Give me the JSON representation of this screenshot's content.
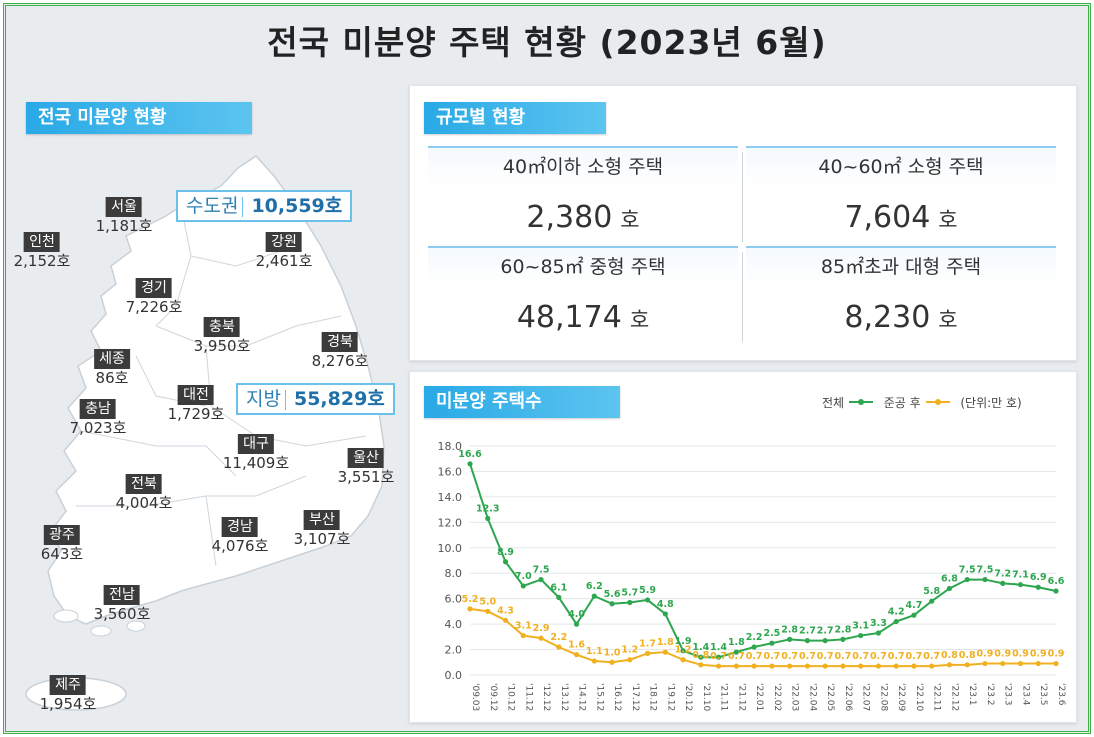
{
  "title": "전국 미분양 주택 현황 (2023년 6월)",
  "map": {
    "tag": "전국 미분양 현황",
    "capital": {
      "label": "수도권",
      "value": "10,559호"
    },
    "local": {
      "label": "지방",
      "value": "55,829호"
    },
    "regions": [
      {
        "id": "seoul",
        "name": "서울",
        "value": "1,181호"
      },
      {
        "id": "incheon",
        "name": "인천",
        "value": "2,152호"
      },
      {
        "id": "gangwon",
        "name": "강원",
        "value": "2,461호"
      },
      {
        "id": "gyeonggi",
        "name": "경기",
        "value": "7,226호"
      },
      {
        "id": "chungbuk",
        "name": "충북",
        "value": "3,950호"
      },
      {
        "id": "gyeongbuk",
        "name": "경북",
        "value": "8,276호"
      },
      {
        "id": "sejong",
        "name": "세종",
        "value": "86호"
      },
      {
        "id": "chungnam",
        "name": "충남",
        "value": "7,023호"
      },
      {
        "id": "daejeon",
        "name": "대전",
        "value": "1,729호"
      },
      {
        "id": "daegu",
        "name": "대구",
        "value": "11,409호"
      },
      {
        "id": "ulsan",
        "name": "울산",
        "value": "3,551호"
      },
      {
        "id": "jeonbuk",
        "name": "전북",
        "value": "4,004호"
      },
      {
        "id": "gyeongnam",
        "name": "경남",
        "value": "4,076호"
      },
      {
        "id": "busan",
        "name": "부산",
        "value": "3,107호"
      },
      {
        "id": "gwangju",
        "name": "광주",
        "value": "643호"
      },
      {
        "id": "jeonnam",
        "name": "전남",
        "value": "3,560호"
      },
      {
        "id": "jeju",
        "name": "제주",
        "value": "1,954호"
      }
    ]
  },
  "size": {
    "tag": "규모별 현황",
    "cells": [
      {
        "label": "40㎡이하 소형 주택",
        "value": "2,380",
        "unit": "호"
      },
      {
        "label": "40~60㎡ 소형 주택",
        "value": "7,604",
        "unit": "호"
      },
      {
        "label": "60~85㎡ 중형 주택",
        "value": "48,174",
        "unit": "호"
      },
      {
        "label": "85㎡초과 대형 주택",
        "value": "8,230",
        "unit": "호"
      }
    ]
  },
  "trend": {
    "tag": "미분양 주택수",
    "legend_total": "전체",
    "legend_completed": "준공 후",
    "legend_unit": "(단위:만 호)"
  },
  "colors": {
    "total": "#2ea64f",
    "completed": "#f0b020",
    "accent": "#29a9e6"
  },
  "chart_data": {
    "type": "line",
    "categories": [
      "'09.03",
      "'09.12",
      "'10.12",
      "'11.12",
      "'12.12",
      "'13.12",
      "'14.12",
      "'15.12",
      "'16.12",
      "'17.12",
      "'18.12",
      "'19.12",
      "'20.12",
      "'21.10",
      "'21.11",
      "'21.12",
      "'22.01",
      "'22.02",
      "'22.03",
      "'22.04",
      "'22.05",
      "'22.06",
      "'22.07",
      "'22.08",
      "'22.09",
      "'22.10",
      "'22.11",
      "'22.12",
      "'23.1",
      "'23.2",
      "'23.3",
      "'23.4",
      "'23.5",
      "'23.6"
    ],
    "ylim": [
      0,
      18
    ],
    "yticks": [
      "0.0",
      "2.0",
      "4.0",
      "6.0",
      "8.0",
      "10.0",
      "12.0",
      "14.0",
      "16.0",
      "18.0"
    ],
    "series": [
      {
        "name": "전체",
        "values": [
          16.6,
          12.3,
          8.9,
          7.0,
          7.5,
          6.1,
          4.0,
          6.2,
          5.6,
          5.7,
          5.9,
          4.8,
          1.9,
          1.4,
          1.4,
          1.8,
          2.2,
          2.5,
          2.8,
          2.7,
          2.7,
          2.8,
          3.1,
          3.3,
          4.2,
          4.7,
          5.8,
          6.8,
          7.5,
          7.5,
          7.2,
          7.1,
          6.9,
          6.6
        ],
        "labels": [
          "16.6",
          "12.3",
          "8.9",
          "7.0",
          "7.5",
          "6.1",
          "4.0",
          "6.2",
          "5.6",
          "5.7",
          "5.9",
          "4.8",
          "1.9",
          "1.4",
          "1.4",
          "1.8",
          "2.2",
          "2.5",
          "2.8",
          "2.7",
          "2.7",
          "2.8",
          "3.1",
          "3.3",
          "4.2",
          "4.7",
          "5.8",
          "6.8",
          "7.5",
          "7.5",
          "7.2",
          "7.1",
          "6.9",
          "6.6"
        ]
      },
      {
        "name": "준공 후",
        "values": [
          5.2,
          5.0,
          4.3,
          3.1,
          2.9,
          2.2,
          1.6,
          1.1,
          1.0,
          1.2,
          1.7,
          1.8,
          1.2,
          0.8,
          0.7,
          0.7,
          0.7,
          0.7,
          0.7,
          0.7,
          0.7,
          0.7,
          0.7,
          0.7,
          0.7,
          0.7,
          0.7,
          0.8,
          0.8,
          0.9,
          0.9,
          0.9,
          0.9,
          0.9
        ],
        "labels": [
          "5.2",
          "5.0",
          "4.3",
          "3.1",
          "2.9",
          "2.2",
          "1.6",
          "1.1",
          "1.0",
          "1.2",
          "1.7",
          "1.8",
          "1.2",
          "0.8",
          "0.7",
          "0.7",
          "0.7",
          "0.7",
          "0.7",
          "0.7",
          "0.7",
          "0.7",
          "0.7",
          "0.7",
          "0.7",
          "0.7",
          "0.7",
          "0.8",
          "0.8",
          "0.9",
          "0.9",
          "0.9",
          "0.9",
          "0.9"
        ]
      }
    ]
  }
}
